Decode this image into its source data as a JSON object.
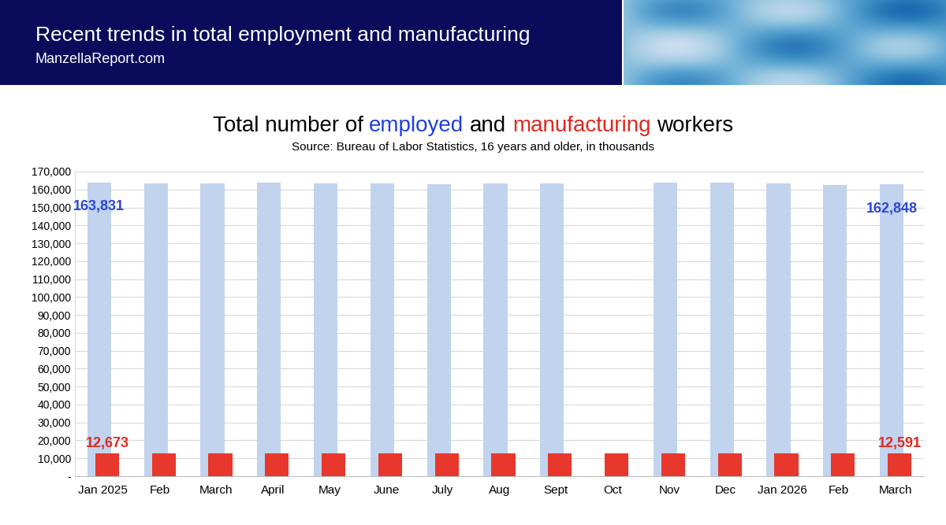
{
  "header": {
    "title": "Recent trends in total employment and manufacturing",
    "subtitle": "ManzellaReport.com"
  },
  "chart_data": {
    "type": "bar",
    "title": "Total number of employed and manufacturing workers",
    "subtitle": "Source: Bureau of Labor Statistics, 16 years and older, in thousands",
    "categories": [
      "Jan 2025",
      "Feb",
      "March",
      "April",
      "May",
      "June",
      "July",
      "Aug",
      "Sept",
      "Oct",
      "Nov",
      "Dec",
      "Jan 2026",
      "Feb",
      "March"
    ],
    "series": [
      {
        "name": "employed",
        "color": "#c2d3ee",
        "values": [
          163831,
          163300,
          163400,
          163900,
          163200,
          163400,
          163100,
          163400,
          163600,
          null,
          163700,
          164000,
          163200,
          162700,
          162848
        ],
        "value_labels": [
          "163,831",
          null,
          null,
          null,
          null,
          null,
          null,
          null,
          null,
          null,
          null,
          null,
          null,
          null,
          "162,848"
        ]
      },
      {
        "name": "manufacturing",
        "color": "#e8372c",
        "values": [
          12673,
          12650,
          12640,
          12630,
          12620,
          12610,
          12600,
          12590,
          12600,
          12600,
          12590,
          12600,
          12590,
          12600,
          12591
        ],
        "value_labels": [
          "12,673",
          null,
          null,
          null,
          null,
          null,
          null,
          null,
          null,
          null,
          null,
          null,
          null,
          null,
          "12,591"
        ]
      }
    ],
    "ylim": [
      0,
      170000
    ],
    "yticks": [
      {
        "value": 0,
        "label": "-"
      },
      {
        "value": 10000,
        "label": "10,000"
      },
      {
        "value": 20000,
        "label": "20,000"
      },
      {
        "value": 30000,
        "label": "30,000"
      },
      {
        "value": 40000,
        "label": "40,000"
      },
      {
        "value": 50000,
        "label": "50,000"
      },
      {
        "value": 60000,
        "label": "60,000"
      },
      {
        "value": 70000,
        "label": "70,000"
      },
      {
        "value": 80000,
        "label": "80,000"
      },
      {
        "value": 90000,
        "label": "90,000"
      },
      {
        "value": 100000,
        "label": "100,000"
      },
      {
        "value": 110000,
        "label": "110,000"
      },
      {
        "value": 120000,
        "label": "120,000"
      },
      {
        "value": 130000,
        "label": "130,000"
      },
      {
        "value": 140000,
        "label": "140,000"
      },
      {
        "value": 150000,
        "label": "150,000"
      },
      {
        "value": 160000,
        "label": "160,000"
      },
      {
        "value": 170000,
        "label": "170,000"
      }
    ],
    "grid": true,
    "data_labels": true
  }
}
